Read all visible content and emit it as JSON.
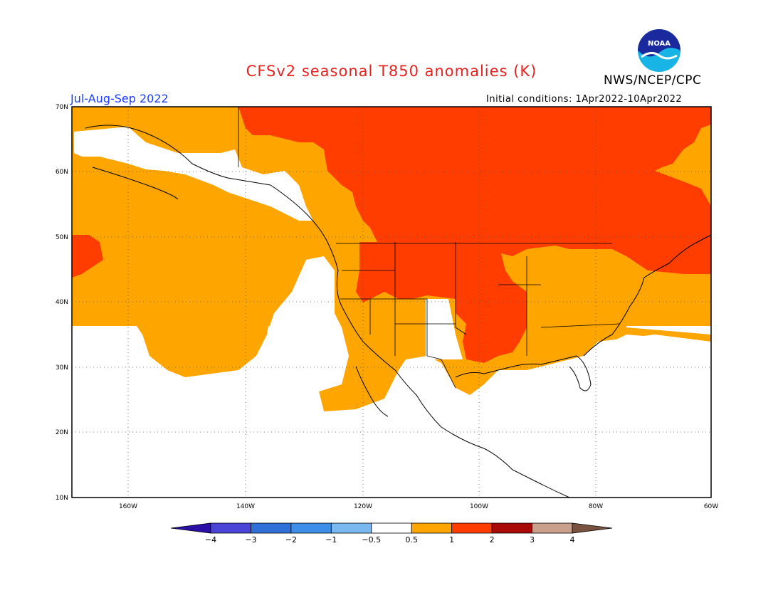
{
  "title": "CFSv2 seasonal T850 anomalies (K)",
  "organization": "NWS/NCEP/CPC",
  "logo_text": "NOAA",
  "season": "Jul-Aug-Sep 2022",
  "initial_conditions": "Initial conditions: 1Apr2022-10Apr2022",
  "lat_labels": [
    "70N",
    "60N",
    "50N",
    "40N",
    "30N",
    "20N",
    "10N"
  ],
  "lon_labels": [
    "160W",
    "140W",
    "120W",
    "100W",
    "80W",
    "60W"
  ],
  "colorbar": {
    "labels": [
      "−4",
      "−3",
      "−2",
      "−1",
      "−0.5",
      "0.5",
      "1",
      "2",
      "3",
      "4"
    ],
    "colors": [
      "#2b0fa6",
      "#4a45d6",
      "#2f6fd8",
      "#3d8ee8",
      "#7ab8f0",
      "#ffffff",
      "#ffa500",
      "#ff3d00",
      "#a80a08",
      "#c8a08c",
      "#7a5240"
    ]
  },
  "legend_colors": {
    "0.5-1": "#ffa500",
    "1-2": "#ff3d00",
    "below 0.5": "#ffffff"
  }
}
